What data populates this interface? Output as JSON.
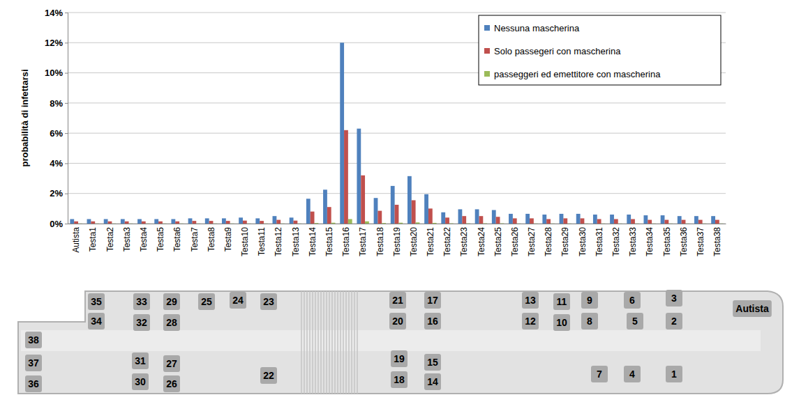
{
  "chart_data": {
    "type": "bar",
    "y_label": "probabilità di infettarsi",
    "categories": [
      "Autista",
      "Testa1",
      "Testa2",
      "Testa3",
      "Testa4",
      "Testa5",
      "Testa6",
      "Testa7",
      "Testa8",
      "Testa9",
      "Testa10",
      "Testa11",
      "Testa12",
      "Testa13",
      "Testa14",
      "Testa15",
      "Testa16",
      "Testa17",
      "Testa18",
      "Testa19",
      "Testa20",
      "Testa21",
      "Testa22",
      "Testa23",
      "Testa24",
      "Testa25",
      "Testa26",
      "Testa27",
      "Testa28",
      "Testa29",
      "Testa30",
      "Testa31",
      "Testa32",
      "Testa33",
      "Testa34",
      "Testa35",
      "Testa36",
      "Testa37",
      "Testa38"
    ],
    "series": [
      {
        "name": "Nessuna mascherina",
        "color": "#4f81bd",
        "values": [
          0.3,
          0.3,
          0.3,
          0.3,
          0.3,
          0.3,
          0.3,
          0.35,
          0.35,
          0.35,
          0.4,
          0.35,
          0.5,
          0.4,
          1.65,
          2.25,
          12.0,
          6.3,
          1.7,
          2.5,
          3.15,
          1.95,
          0.75,
          0.95,
          0.95,
          0.9,
          0.65,
          0.65,
          0.6,
          0.65,
          0.65,
          0.6,
          0.6,
          0.6,
          0.55,
          0.55,
          0.5,
          0.5,
          0.5
        ]
      },
      {
        "name": "Solo passegeri con mascherina",
        "color": "#c0504d",
        "values": [
          0.15,
          0.15,
          0.15,
          0.15,
          0.15,
          0.15,
          0.15,
          0.18,
          0.18,
          0.18,
          0.2,
          0.18,
          0.25,
          0.2,
          0.8,
          1.1,
          6.2,
          3.2,
          0.85,
          1.25,
          1.55,
          1.0,
          0.4,
          0.5,
          0.5,
          0.45,
          0.35,
          0.35,
          0.3,
          0.35,
          0.35,
          0.3,
          0.3,
          0.3,
          0.25,
          0.25,
          0.25,
          0.25,
          0.25
        ]
      },
      {
        "name": "passeggeri ed emettitore con mascherina",
        "color": "#9bbb59",
        "values": [
          0.01,
          0.01,
          0.01,
          0.01,
          0.01,
          0.01,
          0.01,
          0.01,
          0.01,
          0.01,
          0.01,
          0.01,
          0.01,
          0.01,
          0.04,
          0.06,
          0.3,
          0.15,
          0.04,
          0.06,
          0.08,
          0.05,
          0.02,
          0.02,
          0.02,
          0.02,
          0.01,
          0.01,
          0.01,
          0.01,
          0.01,
          0.01,
          0.01,
          0.01,
          0.01,
          0.01,
          0.01,
          0.01,
          0.01
        ]
      }
    ],
    "ylim": [
      0,
      14
    ],
    "yticks": [
      {
        "value": 0,
        "label": "0%"
      },
      {
        "value": 2,
        "label": "2%"
      },
      {
        "value": 4,
        "label": "4%"
      },
      {
        "value": 6,
        "label": "6%"
      },
      {
        "value": 8,
        "label": "8%"
      },
      {
        "value": 10,
        "label": "10%"
      },
      {
        "value": 12,
        "label": "12%"
      },
      {
        "value": 14,
        "label": "14%"
      }
    ],
    "grid": true,
    "legend": "top-right"
  },
  "bus_layout": {
    "seats": [
      "35",
      "34",
      "33",
      "32",
      "29",
      "28",
      "25",
      "24",
      "23",
      "21",
      "20",
      "17",
      "16",
      "13",
      "12",
      "11",
      "10",
      "9",
      "8",
      "6",
      "5",
      "3",
      "2",
      "Autista",
      "38",
      "37",
      "36",
      "31",
      "30",
      "27",
      "26",
      "22",
      "19",
      "18",
      "15",
      "14",
      "7",
      "4",
      "1"
    ]
  }
}
